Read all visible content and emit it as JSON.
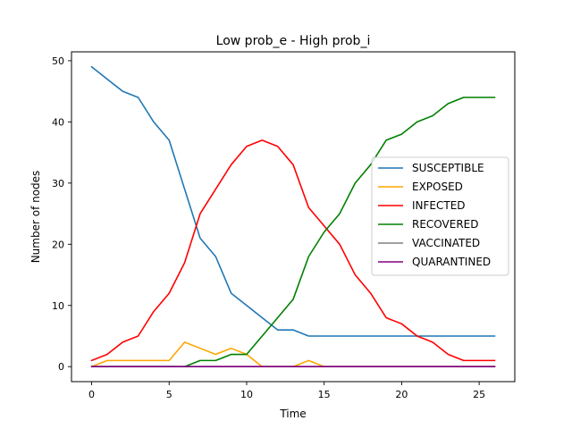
{
  "chart_data": {
    "type": "line",
    "title": "Low prob_e - High prob_i",
    "xlabel": "Time",
    "ylabel": "Number of nodes",
    "xlim": [
      -1.3,
      27.3
    ],
    "ylim": [
      -2.45,
      51.45
    ],
    "xticks": [
      0,
      5,
      10,
      15,
      20,
      25
    ],
    "yticks": [
      0,
      10,
      20,
      30,
      40,
      50
    ],
    "legend_position": "center-right",
    "grid": false,
    "x": [
      0,
      1,
      2,
      3,
      4,
      5,
      6,
      7,
      8,
      9,
      10,
      11,
      12,
      13,
      14,
      15,
      16,
      17,
      18,
      19,
      20,
      21,
      22,
      23,
      24,
      25,
      26
    ],
    "series": [
      {
        "name": "SUSCEPTIBLE",
        "color": "#1f77b4",
        "values": [
          49,
          47,
          45,
          44,
          40,
          37,
          29,
          21,
          18,
          12,
          10,
          8,
          6,
          6,
          5,
          5,
          5,
          5,
          5,
          5,
          5,
          5,
          5,
          5,
          5,
          5,
          5
        ]
      },
      {
        "name": "EXPOSED",
        "color": "#ffa500",
        "values": [
          0,
          1,
          1,
          1,
          1,
          1,
          4,
          3,
          2,
          3,
          2,
          0,
          0,
          0,
          1,
          0,
          0,
          0,
          0,
          0,
          0,
          0,
          0,
          0,
          0,
          0,
          0
        ]
      },
      {
        "name": "INFECTED",
        "color": "#ff0000",
        "values": [
          1,
          2,
          4,
          5,
          9,
          12,
          17,
          25,
          29,
          33,
          36,
          37,
          36,
          33,
          26,
          23,
          20,
          15,
          12,
          8,
          7,
          5,
          4,
          2,
          1,
          1,
          1
        ]
      },
      {
        "name": "RECOVERED",
        "color": "#008000",
        "values": [
          0,
          0,
          0,
          0,
          0,
          0,
          0,
          1,
          1,
          2,
          2,
          5,
          8,
          11,
          18,
          22,
          25,
          30,
          33,
          37,
          38,
          40,
          41,
          43,
          44,
          44,
          44
        ]
      },
      {
        "name": "VACCINATED",
        "color": "#808080",
        "values": [
          0,
          0,
          0,
          0,
          0,
          0,
          0,
          0,
          0,
          0,
          0,
          0,
          0,
          0,
          0,
          0,
          0,
          0,
          0,
          0,
          0,
          0,
          0,
          0,
          0,
          0,
          0
        ]
      },
      {
        "name": "QUARANTINED",
        "color": "#800080",
        "values": [
          0,
          0,
          0,
          0,
          0,
          0,
          0,
          0,
          0,
          0,
          0,
          0,
          0,
          0,
          0,
          0,
          0,
          0,
          0,
          0,
          0,
          0,
          0,
          0,
          0,
          0,
          0
        ]
      }
    ]
  }
}
